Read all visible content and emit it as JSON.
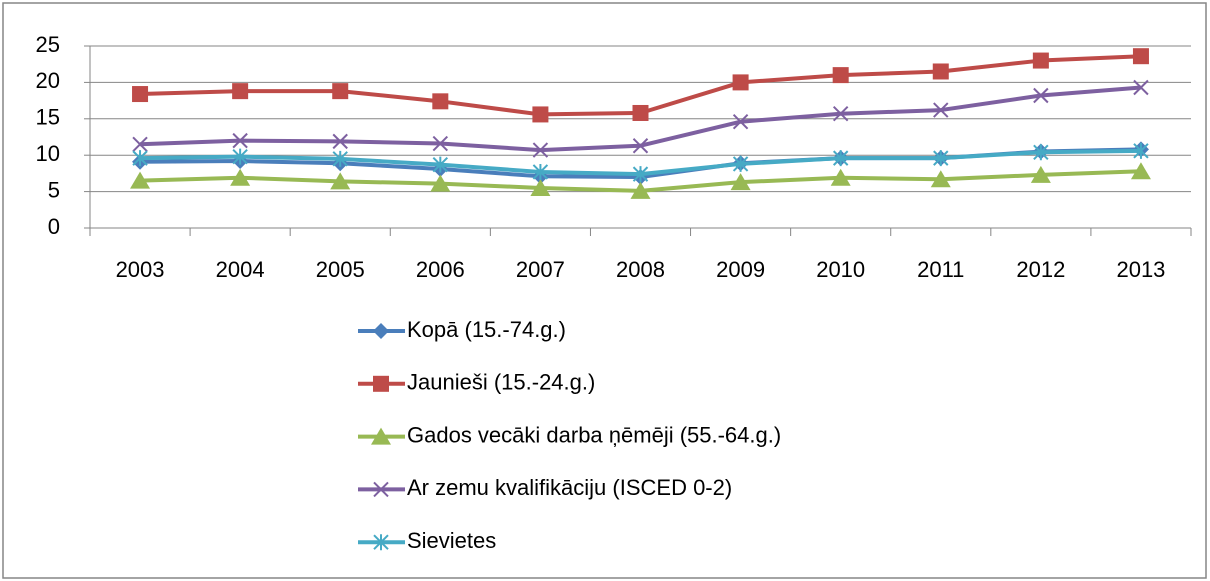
{
  "chart_data": {
    "type": "line",
    "categories": [
      "2003",
      "2004",
      "2005",
      "2006",
      "2007",
      "2008",
      "2009",
      "2010",
      "2011",
      "2012",
      "2013"
    ],
    "series": [
      {
        "name": "Kopā (15.-74.g.)",
        "color": "#4a7ebb",
        "marker": "diamond",
        "values": [
          9.1,
          9.2,
          8.9,
          8.1,
          7.1,
          7.0,
          8.9,
          9.6,
          9.6,
          10.5,
          10.8
        ]
      },
      {
        "name": "Jaunieši (15.-24.g.)",
        "color": "#be4b48",
        "marker": "square",
        "values": [
          18.4,
          18.8,
          18.8,
          17.4,
          15.6,
          15.8,
          20.0,
          21.0,
          21.5,
          23.0,
          23.6
        ]
      },
      {
        "name": "Gados vecāki darba ņēmēji (55.-64.g.)",
        "color": "#98b954",
        "marker": "triangle",
        "values": [
          6.5,
          6.9,
          6.4,
          6.1,
          5.5,
          5.1,
          6.3,
          6.9,
          6.7,
          7.3,
          7.8
        ]
      },
      {
        "name": "Ar zemu kvalifikāciju (ISCED 0-2)",
        "color": "#7d60a0",
        "marker": "x",
        "values": [
          11.5,
          12.0,
          11.9,
          11.6,
          10.7,
          11.3,
          14.6,
          15.7,
          16.2,
          18.2,
          19.3
        ]
      },
      {
        "name": "Sievietes",
        "color": "#46aac5",
        "marker": "star",
        "values": [
          9.6,
          9.8,
          9.5,
          8.7,
          7.7,
          7.4,
          8.8,
          9.6,
          9.6,
          10.4,
          10.6
        ]
      }
    ],
    "ylim": [
      0,
      25
    ],
    "yticks": [
      0,
      5,
      10,
      15,
      20,
      25
    ],
    "grid": true,
    "legend": "bottom"
  }
}
